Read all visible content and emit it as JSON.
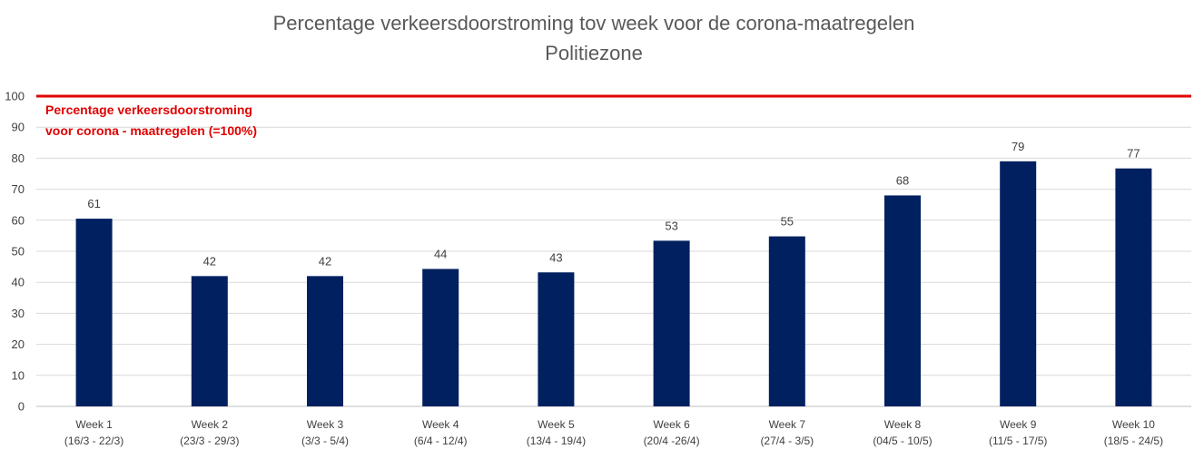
{
  "chart_data": {
    "type": "bar",
    "title": "Percentage verkeersdoorstroming tov week voor de corona-maatregelen",
    "subtitle": "Politiezone",
    "categories": [
      [
        "Week 1",
        "(16/3 - 22/3)"
      ],
      [
        "Week 2",
        "(23/3 - 29/3)"
      ],
      [
        "Week 3",
        "(3/3 - 5/4)"
      ],
      [
        "Week 4",
        "(6/4 - 12/4)"
      ],
      [
        "Week 5",
        "(13/4 - 19/4)"
      ],
      [
        "Week 6",
        "(20/4 -26/4)"
      ],
      [
        "Week 7",
        "(27/4 - 3/5)"
      ],
      [
        "Week 8",
        "(04/5 - 10/5)"
      ],
      [
        "Week 9",
        "(11/5 - 17/5)"
      ],
      [
        "Week 10",
        "(18/5 - 24/5)"
      ]
    ],
    "values": [
      60.5,
      42,
      42,
      44.3,
      43.2,
      53.4,
      54.8,
      68,
      79,
      76.7
    ],
    "data_labels": [
      "61",
      "42",
      "42",
      "44",
      "43",
      "53",
      "55",
      "68",
      "79",
      "77"
    ],
    "ylim": [
      0,
      100
    ],
    "yticks": [
      "0",
      "10",
      "20",
      "30",
      "40",
      "50",
      "60",
      "70",
      "80",
      "90",
      "100"
    ],
    "grid": true,
    "bar_color": "#002060",
    "reference_line": {
      "value": 100,
      "color": "#e00000",
      "label_lines": [
        "Percentage verkeersdoorstroming",
        "voor corona - maatregelen (=100%)"
      ]
    }
  }
}
